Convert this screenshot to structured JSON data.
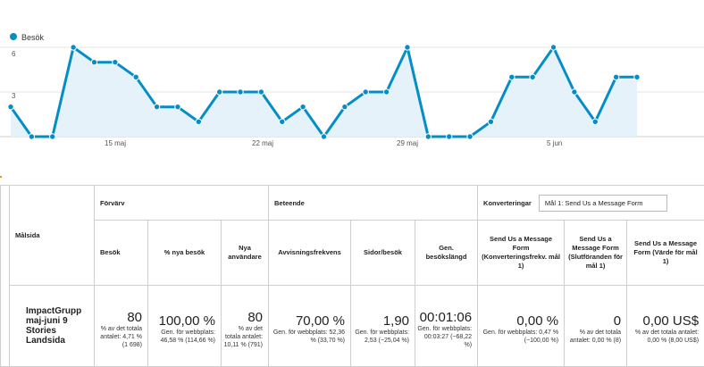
{
  "chart": {
    "legend": "Besök",
    "colors": {
      "line": "#058dc7",
      "area": "#e6f2fa"
    },
    "y_ticks": [
      "6",
      "3"
    ],
    "x_ticks": [
      "15 maj",
      "22 maj",
      "29 maj",
      "5 jun"
    ]
  },
  "chart_data": {
    "type": "area",
    "series": [
      {
        "name": "Besök",
        "values": [
          2,
          0,
          0,
          6,
          5,
          5,
          4,
          2,
          2,
          1,
          3,
          3,
          3,
          1,
          2,
          0,
          2,
          3,
          3,
          6,
          0,
          0,
          0,
          1,
          4,
          4,
          6,
          3,
          1,
          4,
          4
        ]
      }
    ],
    "ylim": [
      0,
      6
    ],
    "grid": true,
    "legend_position": "top-left"
  },
  "table": {
    "groups": {
      "acquisition": "Förvärv",
      "behavior": "Beteende",
      "conversions": "Konverteringar",
      "goal_select": "Mål 1: Send Us a Message Form"
    },
    "columns": {
      "landing_page": "Målsida",
      "visits": "Besök",
      "new_visits_pct": "% nya besök",
      "new_users": "Nya användare",
      "bounce_rate": "Avvisningsfrekvens",
      "pages_per_visit": "Sidor/besök",
      "avg_duration": "Gen. besökslängd",
      "conv_rate": "Send Us a Message Form (Konverteringsfrekv. mål 1)",
      "completions": "Send Us a Message Form (Slutföranden för mål 1)",
      "value": "Send Us a Message Form (Värde för mål 1)"
    },
    "row": {
      "name": "ImpactGrupp maj-juni 9 Stories Landsida",
      "visits": {
        "value": "80",
        "sub": "% av det totala antalet: 4,71 % (1 698)"
      },
      "new_visits_pct": {
        "value": "100,00 %",
        "sub": "Gen. för webbplats: 46,58 % (114,66 %)"
      },
      "new_users": {
        "value": "80",
        "sub": "% av det totala antalet: 10,11 % (791)"
      },
      "bounce_rate": {
        "value": "70,00 %",
        "sub": "Gen. för webbplats: 52,36 % (33,70 %)"
      },
      "pages_per_visit": {
        "value": "1,90",
        "sub": "Gen. för webbplats: 2,53 (−25,04 %)"
      },
      "avg_duration": {
        "value": "00:01:06",
        "sub": "Gen. för webbplats: 00:03:27 (−68,22 %)"
      },
      "conv_rate": {
        "value": "0,00 %",
        "sub": "Gen. för webbplats: 0,47 % (−100,00 %)"
      },
      "completions": {
        "value": "0",
        "sub": "% av det totala antalet: 0,00 % (8)"
      },
      "value": {
        "value": "0,00 US$",
        "sub": "% av det totala antalet: 0,00 % (8,00 US$)"
      }
    }
  }
}
